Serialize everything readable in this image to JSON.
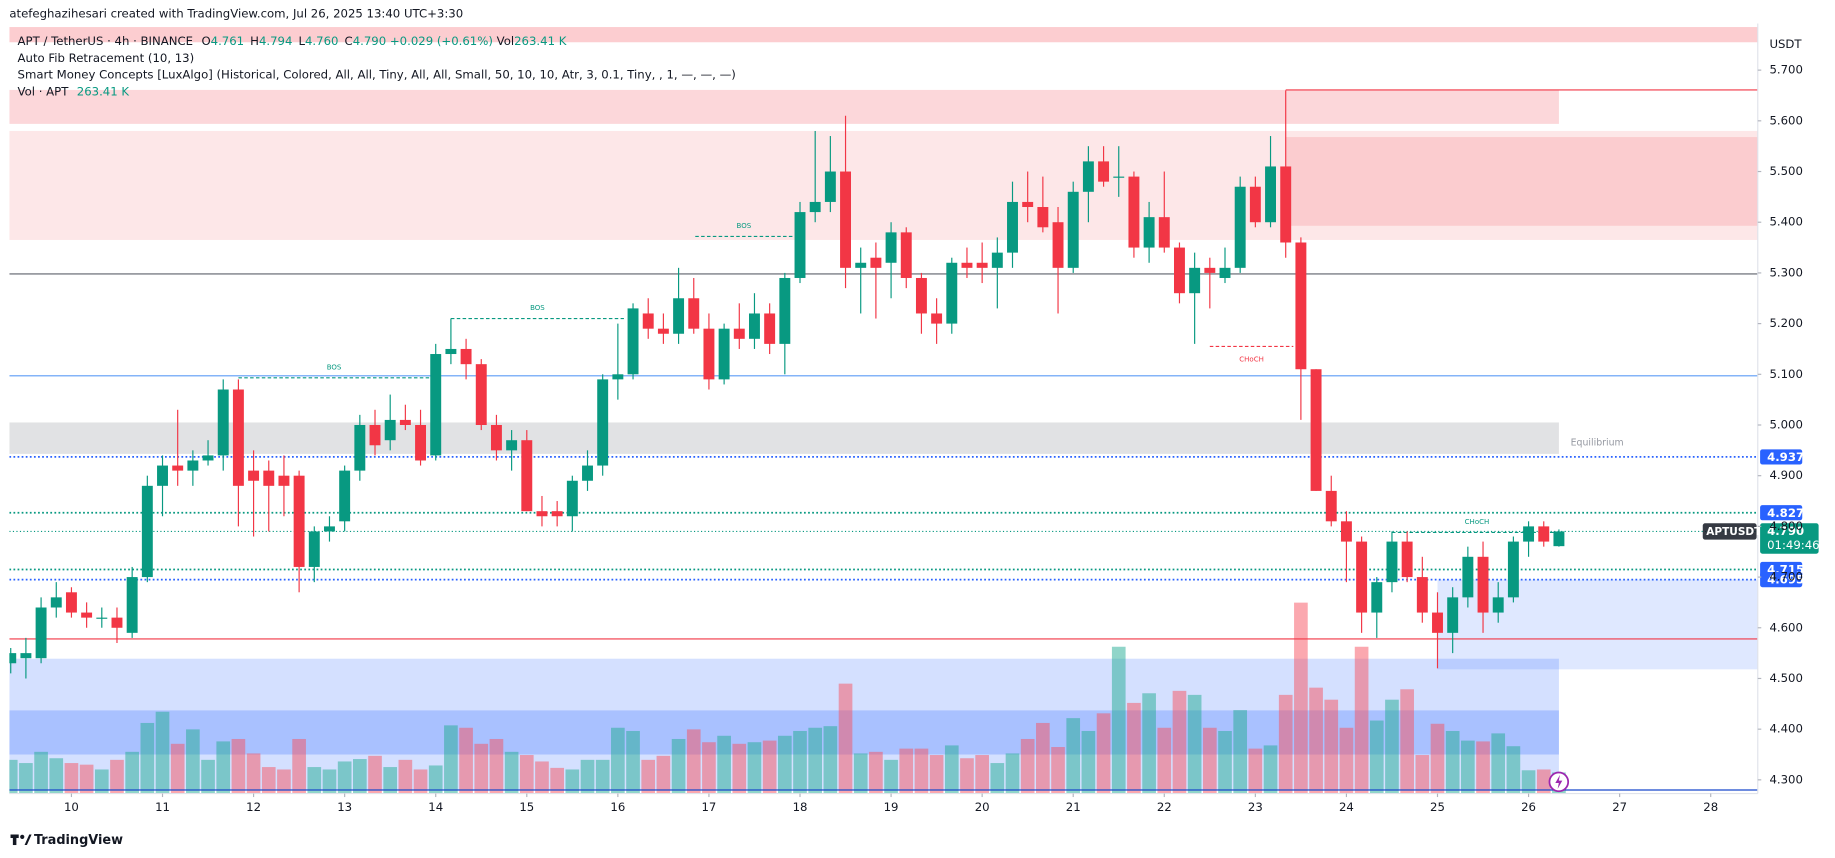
{
  "header": {
    "author": "atefeghazihesari created with TradingView.com, Jul 26, 2025 13:40 UTC+3:30",
    "symbol": "APT / TetherUS · 4h · BINANCE",
    "open_label": "O",
    "open": "4.761",
    "high_label": "H",
    "high": "4.794",
    "low_label": "L",
    "low": "4.760",
    "close_label": "C",
    "close": "4.790",
    "change": "+0.029 (+0.61%)",
    "vol_label": "Vol",
    "vol": "263.41 K"
  },
  "indicators": [
    "Auto Fib Retracement (10, 13)",
    "Smart Money Concepts [LuxAlgo] (Historical, Colored, All, All, Tiny, All, All, Small, 50, 10, 10, Atr, 3, 0.1, Tiny, , 1, —, —, —)"
  ],
  "volume_legend": {
    "name": "Vol · APT",
    "value": "263.41 K"
  },
  "currency": "USDT",
  "footer": "TradingView",
  "chart_data": {
    "type": "candlestick",
    "up_color": "#089981",
    "down_color": "#f23645",
    "volume_up_color": "rgba(34,171,148,0.5)",
    "volume_down_color": "rgba(247,82,95,0.5)",
    "open": [
      4.53,
      4.54,
      4.54,
      4.64,
      4.67,
      4.63,
      4.62,
      4.62,
      4.59,
      4.7,
      4.88,
      4.92,
      4.91,
      4.93,
      4.94,
      5.07,
      4.91,
      4.91,
      4.9,
      4.9,
      4.72,
      4.79,
      4.81,
      4.91,
      5.0,
      4.97,
      5.01,
      5.0,
      4.94,
      5.14,
      5.15,
      5.12,
      5.0,
      4.95,
      4.97,
      4.83,
      4.83,
      4.82,
      4.89,
      4.92,
      5.09,
      5.1,
      5.22,
      5.19,
      5.18,
      5.25,
      5.19,
      5.09,
      5.19,
      5.17,
      5.22,
      5.16,
      5.29,
      5.42,
      5.44,
      5.5,
      5.31,
      5.33,
      5.32,
      5.38,
      5.29,
      5.22,
      5.2,
      5.32,
      5.32,
      5.31,
      5.34,
      5.44,
      5.43,
      5.4,
      5.31,
      5.46,
      5.52,
      5.49,
      5.49,
      5.35,
      5.41,
      5.35,
      5.26,
      5.31,
      5.29,
      5.31,
      5.47,
      5.4,
      5.51,
      5.36,
      5.11,
      4.87,
      4.81,
      4.77,
      4.63,
      4.69,
      4.77,
      4.7,
      4.63,
      4.59,
      4.66,
      4.74,
      4.63,
      4.66,
      4.77,
      4.8,
      4.761
    ],
    "high": [
      4.56,
      4.58,
      4.66,
      4.69,
      4.68,
      4.65,
      4.64,
      4.64,
      4.72,
      4.9,
      4.94,
      5.03,
      4.95,
      4.97,
      5.09,
      5.09,
      4.95,
      4.93,
      4.94,
      4.91,
      4.8,
      4.82,
      4.92,
      5.02,
      5.03,
      5.06,
      5.04,
      5.03,
      5.16,
      5.21,
      5.17,
      5.13,
      5.02,
      4.99,
      4.99,
      4.86,
      4.85,
      4.9,
      4.95,
      5.1,
      5.2,
      5.24,
      5.25,
      5.22,
      5.31,
      5.29,
      5.22,
      5.2,
      5.24,
      5.26,
      5.24,
      5.3,
      5.44,
      5.58,
      5.57,
      5.61,
      5.35,
      5.36,
      5.4,
      5.39,
      5.3,
      5.25,
      5.33,
      5.35,
      5.36,
      5.37,
      5.48,
      5.5,
      5.49,
      5.43,
      5.48,
      5.55,
      5.55,
      5.55,
      5.5,
      5.44,
      5.5,
      5.36,
      5.34,
      5.33,
      5.35,
      5.49,
      5.49,
      5.57,
      5.66,
      5.37,
      5.11,
      4.9,
      4.83,
      4.78,
      4.7,
      4.79,
      4.79,
      4.74,
      4.67,
      4.68,
      4.76,
      4.77,
      4.69,
      4.78,
      4.81,
      4.81,
      4.794
    ],
    "low": [
      4.51,
      4.5,
      4.53,
      4.62,
      4.62,
      4.6,
      4.6,
      4.57,
      4.58,
      4.69,
      4.82,
      4.88,
      4.88,
      4.92,
      4.91,
      4.8,
      4.78,
      4.79,
      4.82,
      4.67,
      4.69,
      4.77,
      4.79,
      4.89,
      4.94,
      4.95,
      4.99,
      4.92,
      4.93,
      5.12,
      5.09,
      4.99,
      4.93,
      4.91,
      4.83,
      4.8,
      4.8,
      4.79,
      4.87,
      4.9,
      5.05,
      5.09,
      5.17,
      5.16,
      5.16,
      5.18,
      5.07,
      5.08,
      5.15,
      5.15,
      5.14,
      5.1,
      5.28,
      5.4,
      5.42,
      5.27,
      5.22,
      5.21,
      5.25,
      5.27,
      5.18,
      5.16,
      5.18,
      5.29,
      5.28,
      5.23,
      5.31,
      5.4,
      5.38,
      5.22,
      5.3,
      5.4,
      5.47,
      5.45,
      5.33,
      5.32,
      5.34,
      5.24,
      5.16,
      5.23,
      5.28,
      5.3,
      5.39,
      5.39,
      5.33,
      5.01,
      4.87,
      4.8,
      4.69,
      4.59,
      4.58,
      4.67,
      4.69,
      4.61,
      4.52,
      4.55,
      4.64,
      4.59,
      4.61,
      4.65,
      4.74,
      4.76,
      4.76
    ],
    "close": [
      4.55,
      4.55,
      4.64,
      4.66,
      4.63,
      4.62,
      4.62,
      4.6,
      4.7,
      4.88,
      4.92,
      4.91,
      4.93,
      4.94,
      5.07,
      4.88,
      4.89,
      4.88,
      4.88,
      4.72,
      4.79,
      4.8,
      4.91,
      5.0,
      4.96,
      5.01,
      5.0,
      4.93,
      5.14,
      5.15,
      5.12,
      5.0,
      4.95,
      4.97,
      4.83,
      4.82,
      4.82,
      4.89,
      4.92,
      5.09,
      5.1,
      5.23,
      5.19,
      5.18,
      5.25,
      5.19,
      5.09,
      5.19,
      5.17,
      5.22,
      5.16,
      5.29,
      5.42,
      5.44,
      5.5,
      5.31,
      5.32,
      5.31,
      5.38,
      5.29,
      5.22,
      5.2,
      5.32,
      5.31,
      5.31,
      5.34,
      5.44,
      5.43,
      5.39,
      5.31,
      5.46,
      5.52,
      5.48,
      5.49,
      5.35,
      5.41,
      5.35,
      5.26,
      5.31,
      5.3,
      5.31,
      5.47,
      5.4,
      5.51,
      5.36,
      5.11,
      4.87,
      4.81,
      4.77,
      4.63,
      4.69,
      4.77,
      4.7,
      4.63,
      4.59,
      4.66,
      4.74,
      4.63,
      4.66,
      4.77,
      4.8,
      4.77,
      4.79
    ],
    "volume": [
      420,
      380,
      520,
      440,
      380,
      360,
      300,
      420,
      520,
      880,
      1020,
      620,
      800,
      420,
      650,
      680,
      500,
      330,
      300,
      680,
      330,
      300,
      400,
      430,
      470,
      330,
      420,
      300,
      350,
      850,
      820,
      620,
      680,
      520,
      480,
      400,
      320,
      300,
      420,
      420,
      820,
      780,
      420,
      470,
      680,
      800,
      640,
      720,
      620,
      640,
      660,
      720,
      780,
      820,
      840,
      1370,
      500,
      520,
      420,
      560,
      560,
      480,
      600,
      440,
      480,
      380,
      500,
      680,
      880,
      580,
      940,
      780,
      1000,
      1830,
      1130,
      1250,
      820,
      1280,
      1230,
      820,
      780,
      1040,
      560,
      600,
      1230,
      2380,
      1320,
      1170,
      820,
      1830,
      910,
      1170,
      1300,
      480,
      870,
      780,
      660,
      650,
      750,
      590,
      290,
      300,
      263.41
    ],
    "volume_lim": [
      0,
      9600
    ],
    "xlim": [
      -0.09,
      115.1
    ],
    "xticks": [
      {
        "value": 4,
        "label": "10"
      },
      {
        "value": 10,
        "label": "11"
      },
      {
        "value": 16,
        "label": "12"
      },
      {
        "value": 22,
        "label": "13"
      },
      {
        "value": 28,
        "label": "14"
      },
      {
        "value": 34,
        "label": "15"
      },
      {
        "value": 40,
        "label": "16"
      },
      {
        "value": 46,
        "label": "17"
      },
      {
        "value": 52,
        "label": "18"
      },
      {
        "value": 58,
        "label": "19"
      },
      {
        "value": 64,
        "label": "20"
      },
      {
        "value": 70,
        "label": "21"
      },
      {
        "value": 76,
        "label": "22"
      },
      {
        "value": 82,
        "label": "23"
      },
      {
        "value": 88,
        "label": "24"
      },
      {
        "value": 94,
        "label": "25"
      },
      {
        "value": 100,
        "label": "26"
      },
      {
        "value": 106,
        "label": "27"
      },
      {
        "value": 112,
        "label": "28"
      }
    ],
    "ylim": [
      4.273,
      5.792
    ],
    "yticks": [
      {
        "value": 4.3,
        "label": "4.300"
      },
      {
        "value": 4.4,
        "label": "4.400"
      },
      {
        "value": 4.5,
        "label": "4.500"
      },
      {
        "value": 4.6,
        "label": "4.600"
      },
      {
        "value": 4.7,
        "label": "4.700"
      },
      {
        "value": 4.8,
        "label": "4.800"
      },
      {
        "value": 4.9,
        "label": "4.900"
      },
      {
        "value": 5.0,
        "label": "5.000"
      },
      {
        "value": 5.1,
        "label": "5.100"
      },
      {
        "value": 5.2,
        "label": "5.200"
      },
      {
        "value": 5.3,
        "label": "5.300"
      },
      {
        "value": 5.4,
        "label": "5.400"
      },
      {
        "value": 5.5,
        "label": "5.500"
      },
      {
        "value": 5.6,
        "label": "5.600"
      },
      {
        "value": 5.7,
        "label": "5.700"
      }
    ],
    "zones": [
      {
        "low": 5.755,
        "high": 5.785,
        "start": -0.09,
        "end": 115.1,
        "color": "rgba(242,54,69,0.25)"
      },
      {
        "low": 5.594,
        "high": 5.661,
        "start": -0.09,
        "end": 102,
        "color": "rgba(242,54,69,0.2)"
      },
      {
        "low": 5.365,
        "high": 5.58,
        "start": -0.09,
        "end": 115.1,
        "color": "rgba(242,54,69,0.12)"
      },
      {
        "low": 5.393,
        "high": 5.568,
        "start": 84,
        "end": 115.1,
        "color": "rgba(242,54,69,0.15)"
      },
      {
        "low": 4.943,
        "high": 5.005,
        "start": -0.09,
        "end": 102,
        "color": "rgba(120,123,134,0.22)",
        "label": "Equilibrium"
      },
      {
        "low": 4.28,
        "high": 4.539,
        "start": -0.09,
        "end": 102,
        "color": "rgba(41,98,255,0.2)"
      },
      {
        "low": 4.35,
        "high": 4.437,
        "start": -0.09,
        "end": 102,
        "color": "rgba(41,98,255,0.25)"
      },
      {
        "low": 4.518,
        "high": 4.695,
        "start": 94,
        "end": 115.1,
        "color": "rgba(41,98,255,0.15)"
      }
    ],
    "levels": [
      {
        "price": 5.298,
        "start": -0.09,
        "end": 115.1,
        "color": "#5d606b",
        "style": "solid"
      },
      {
        "price": 5.097,
        "start": -0.09,
        "end": 115.1,
        "color": "#5b9cf6",
        "style": "solid"
      },
      {
        "price": 4.578,
        "start": -0.09,
        "end": 115.1,
        "color": "#f23645",
        "style": "solid"
      },
      {
        "price": 5.661,
        "start": 84,
        "end": 115.1,
        "color": "#f23645",
        "style": "solid"
      },
      {
        "price": 4.28,
        "start": -0.09,
        "end": 115.1,
        "color": "#1848cc",
        "style": "solid"
      },
      {
        "price": 4.937,
        "start": -0.09,
        "end": 115.1,
        "color": "#2962ff",
        "style": "dotted",
        "tag": true
      },
      {
        "price": 4.827,
        "start": -0.09,
        "end": 115.1,
        "color": "#089981",
        "style": "dotted",
        "tag": true
      },
      {
        "price": 4.715,
        "start": -0.09,
        "end": 115.1,
        "color": "#089981",
        "style": "dotted",
        "tag": true
      },
      {
        "price": 4.695,
        "start": -0.09,
        "end": 115.1,
        "color": "#2962ff",
        "style": "dotted",
        "tag": true
      }
    ],
    "structures": [
      {
        "label": "BOS",
        "level": 5.093,
        "start": 15,
        "end": 27.6,
        "color": "#089981"
      },
      {
        "label": "BOS",
        "level": 5.21,
        "start": 29,
        "end": 40.4,
        "color": "#089981"
      },
      {
        "label": "BOS",
        "level": 5.372,
        "start": 45.1,
        "end": 51.5,
        "color": "#089981"
      },
      {
        "label": "CHoCH",
        "level": 5.155,
        "start": 79,
        "end": 84.5,
        "color": "#f23645"
      },
      {
        "label": "CHoCH",
        "level": 4.788,
        "start": 91,
        "end": 102.2,
        "color": "#089981"
      }
    ],
    "last_price": {
      "symbol": "APTUSDT",
      "value": 4.79,
      "label": "4.790",
      "countdown": "01:49:46",
      "color": "#089981"
    }
  }
}
